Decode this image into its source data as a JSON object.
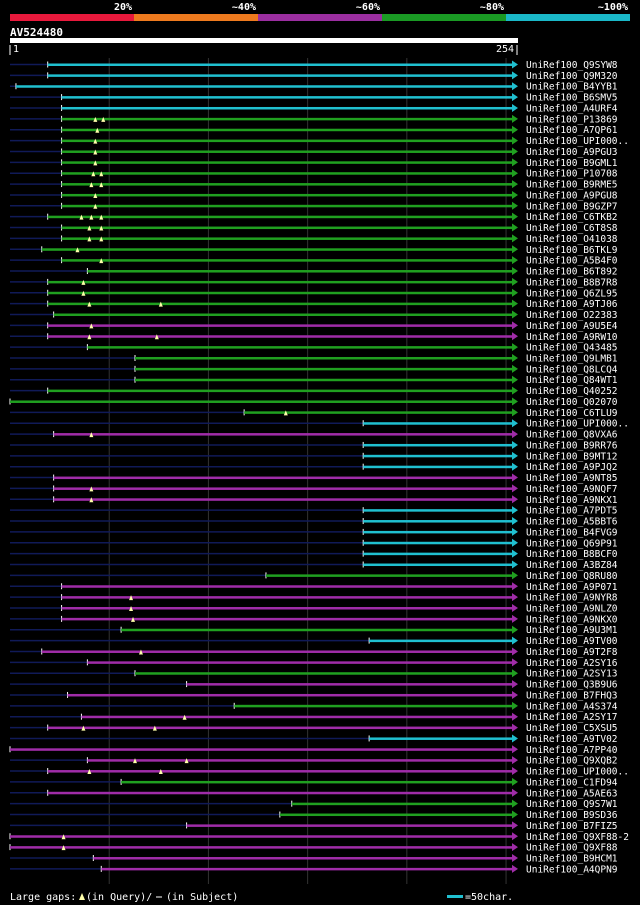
{
  "chart_data": {
    "type": "alignment-overview",
    "title": "AV524480",
    "scale": {
      "thresholds": [
        "20%",
        "~40%",
        "~60%",
        "~80%",
        "~100%"
      ],
      "colors": [
        "#e8193c",
        "#ee7a1e",
        "#9b2ea0",
        "#1a9a24",
        "#1ab8c8"
      ]
    },
    "query": {
      "start_label": "1",
      "end_label": "254",
      "length": 254
    },
    "colors": {
      "cyan": "#20c0d0",
      "green": "#20a020",
      "magenta": "#a02ca8",
      "navy": "#101a58",
      "gap": "#ffffaa"
    },
    "hits": [
      {
        "name": "UniRef100_Q9SYW8",
        "start": 20,
        "color": "cyan",
        "pre": "navy",
        "gaps": []
      },
      {
        "name": "UniRef100_Q9M320",
        "start": 20,
        "color": "cyan",
        "pre": "navy",
        "gaps": []
      },
      {
        "name": "UniRef100_B4YYB1",
        "start": 4,
        "color": "cyan",
        "pre": "navy",
        "gaps": []
      },
      {
        "name": "UniRef100_B6SMV5",
        "start": 27,
        "color": "cyan",
        "pre": "navy",
        "gaps": []
      },
      {
        "name": "UniRef100_A4URF4",
        "start": 27,
        "color": "cyan",
        "pre": "navy",
        "gaps": []
      },
      {
        "name": "UniRef100_P13869",
        "start": 27,
        "color": "green",
        "pre": "navy",
        "gaps": [
          44,
          48
        ]
      },
      {
        "name": "UniRef100_A7QP61",
        "start": 27,
        "color": "green",
        "pre": "navy",
        "gaps": [
          45
        ]
      },
      {
        "name": "UniRef100_UPI000..",
        "start": 27,
        "color": "green",
        "pre": "navy",
        "gaps": [
          44
        ]
      },
      {
        "name": "UniRef100_A9PGU3",
        "start": 27,
        "color": "green",
        "pre": "navy",
        "gaps": [
          44
        ]
      },
      {
        "name": "UniRef100_B9GML1",
        "start": 27,
        "color": "green",
        "pre": "navy",
        "gaps": [
          44
        ]
      },
      {
        "name": "UniRef100_P10708",
        "start": 27,
        "color": "green",
        "pre": "navy",
        "gaps": [
          43,
          47
        ]
      },
      {
        "name": "UniRef100_B9RME5",
        "start": 27,
        "color": "green",
        "pre": "navy",
        "gaps": [
          42,
          47
        ]
      },
      {
        "name": "UniRef100_A9PGU8",
        "start": 27,
        "color": "green",
        "pre": "navy",
        "gaps": [
          44
        ]
      },
      {
        "name": "UniRef100_B9GZP7",
        "start": 27,
        "color": "green",
        "pre": "navy",
        "gaps": [
          44
        ]
      },
      {
        "name": "UniRef100_C6TKB2",
        "start": 20,
        "color": "green",
        "pre": "navy",
        "gaps": [
          37,
          42,
          47
        ]
      },
      {
        "name": "UniRef100_C6T8S8",
        "start": 27,
        "color": "green",
        "pre": "navy",
        "gaps": [
          41,
          47
        ]
      },
      {
        "name": "UniRef100_O41038",
        "start": 27,
        "color": "green",
        "pre": "navy",
        "gaps": [
          41,
          47
        ]
      },
      {
        "name": "UniRef100_B6TKL9",
        "start": 17,
        "color": "green",
        "pre": "navy",
        "gaps": [
          35
        ]
      },
      {
        "name": "UniRef100_A5B4F0",
        "start": 27,
        "color": "green",
        "pre": "navy",
        "gaps": [
          47
        ]
      },
      {
        "name": "UniRef100_B6T892",
        "start": 40,
        "color": "green",
        "pre": "navy",
        "gaps": []
      },
      {
        "name": "UniRef100_B8B7R8",
        "start": 20,
        "color": "green",
        "pre": "navy",
        "gaps": [
          38
        ]
      },
      {
        "name": "UniRef100_Q6ZL95",
        "start": 20,
        "color": "green",
        "pre": "navy",
        "gaps": [
          38
        ]
      },
      {
        "name": "UniRef100_A9TJ06",
        "start": 20,
        "color": "green",
        "pre": "navy",
        "gaps": [
          41,
          77
        ]
      },
      {
        "name": "UniRef100_O22383",
        "start": 23,
        "color": "green",
        "pre": "navy",
        "gaps": []
      },
      {
        "name": "UniRef100_A9U5E4",
        "start": 20,
        "color": "magenta",
        "pre": "navy",
        "gaps": [
          42
        ]
      },
      {
        "name": "UniRef100_A9RW10",
        "start": 20,
        "color": "magenta",
        "pre": "navy",
        "gaps": [
          41,
          75
        ]
      },
      {
        "name": "UniRef100_Q43485",
        "start": 40,
        "color": "green",
        "pre": "navy",
        "gaps": []
      },
      {
        "name": "UniRef100_Q9LMB1",
        "start": 64,
        "color": "green",
        "pre": "navy",
        "gaps": []
      },
      {
        "name": "UniRef100_Q8LCQ4",
        "start": 64,
        "color": "green",
        "pre": "navy",
        "gaps": []
      },
      {
        "name": "UniRef100_Q84WT1",
        "start": 64,
        "color": "green",
        "pre": "navy",
        "gaps": []
      },
      {
        "name": "UniRef100_Q40252",
        "start": 20,
        "color": "green",
        "pre": "navy",
        "gaps": []
      },
      {
        "name": "UniRef100_Q02070",
        "start": 1,
        "color": "green",
        "pre": "navy",
        "gaps": []
      },
      {
        "name": "UniRef100_C6TLU9",
        "start": 119,
        "color": "green",
        "pre": "navy",
        "gaps": [
          140
        ]
      },
      {
        "name": "UniRef100_UPI000..",
        "start": 179,
        "color": "cyan",
        "pre": "navy",
        "gaps": []
      },
      {
        "name": "UniRef100_Q8VXA6",
        "start": 23,
        "color": "magenta",
        "pre": "navy",
        "gaps": [
          42
        ]
      },
      {
        "name": "UniRef100_B9RR76",
        "start": 179,
        "color": "cyan",
        "pre": "navy",
        "gaps": []
      },
      {
        "name": "UniRef100_B9MT12",
        "start": 179,
        "color": "cyan",
        "pre": "navy",
        "gaps": []
      },
      {
        "name": "UniRef100_A9PJQ2",
        "start": 179,
        "color": "cyan",
        "pre": "navy",
        "gaps": []
      },
      {
        "name": "UniRef100_A9NT85",
        "start": 23,
        "color": "magenta",
        "pre": "navy",
        "gaps": []
      },
      {
        "name": "UniRef100_A9NQF7",
        "start": 23,
        "color": "magenta",
        "pre": "navy",
        "gaps": [
          42
        ]
      },
      {
        "name": "UniRef100_A9NKX1",
        "start": 23,
        "color": "magenta",
        "pre": "navy",
        "gaps": [
          42
        ]
      },
      {
        "name": "UniRef100_A7PDT5",
        "start": 179,
        "color": "cyan",
        "pre": "navy",
        "gaps": []
      },
      {
        "name": "UniRef100_A5BBT6",
        "start": 179,
        "color": "cyan",
        "pre": "navy",
        "gaps": []
      },
      {
        "name": "UniRef100_B4FVG9",
        "start": 179,
        "color": "cyan",
        "pre": "navy",
        "gaps": []
      },
      {
        "name": "UniRef100_Q69P91",
        "start": 179,
        "color": "cyan",
        "pre": "navy",
        "gaps": []
      },
      {
        "name": "UniRef100_B8BCF0",
        "start": 179,
        "color": "cyan",
        "pre": "navy",
        "gaps": []
      },
      {
        "name": "UniRef100_A3BZ84",
        "start": 179,
        "color": "cyan",
        "pre": "navy",
        "gaps": []
      },
      {
        "name": "UniRef100_Q8RU80",
        "start": 130,
        "color": "green",
        "pre": "navy",
        "gaps": []
      },
      {
        "name": "UniRef100_A9P071",
        "start": 27,
        "color": "magenta",
        "pre": "navy",
        "gaps": []
      },
      {
        "name": "UniRef100_A9NYR8",
        "start": 27,
        "color": "magenta",
        "pre": "navy",
        "gaps": [
          62
        ]
      },
      {
        "name": "UniRef100_A9NLZ0",
        "start": 27,
        "color": "magenta",
        "pre": "navy",
        "gaps": [
          62
        ]
      },
      {
        "name": "UniRef100_A9NKX0",
        "start": 27,
        "color": "magenta",
        "pre": "navy",
        "gaps": [
          63
        ]
      },
      {
        "name": "UniRef100_A9U3M1",
        "start": 57,
        "color": "green",
        "pre": "navy",
        "gaps": []
      },
      {
        "name": "UniRef100_A9TV00",
        "start": 182,
        "color": "cyan",
        "pre": "navy",
        "gaps": []
      },
      {
        "name": "UniRef100_A9T2F8",
        "start": 17,
        "color": "magenta",
        "pre": "navy",
        "gaps": [
          67
        ]
      },
      {
        "name": "UniRef100_A2SY16",
        "start": 40,
        "color": "magenta",
        "pre": "navy",
        "gaps": []
      },
      {
        "name": "UniRef100_A2SY13",
        "start": 64,
        "color": "green",
        "pre": "navy",
        "gaps": []
      },
      {
        "name": "UniRef100_Q3B9U6",
        "start": 90,
        "color": "magenta",
        "pre": "navy",
        "gaps": []
      },
      {
        "name": "UniRef100_B7FHQ3",
        "start": 30,
        "color": "magenta",
        "pre": "navy",
        "gaps": []
      },
      {
        "name": "UniRef100_A4S374",
        "start": 114,
        "color": "green",
        "pre": "navy",
        "gaps": []
      },
      {
        "name": "UniRef100_A2SY17",
        "start": 37,
        "color": "magenta",
        "pre": "navy",
        "gaps": [
          89
        ]
      },
      {
        "name": "UniRef100_C5XSU5",
        "start": 20,
        "color": "magenta",
        "pre": "navy",
        "gaps": [
          38,
          74
        ]
      },
      {
        "name": "UniRef100_A9TV02",
        "start": 182,
        "color": "cyan",
        "pre": "navy",
        "gaps": []
      },
      {
        "name": "UniRef100_A7PP40",
        "start": 1,
        "color": "magenta",
        "pre": "navy",
        "gaps": []
      },
      {
        "name": "UniRef100_Q9XQB2",
        "start": 40,
        "color": "magenta",
        "pre": "navy",
        "gaps": [
          64,
          90
        ]
      },
      {
        "name": "UniRef100_UPI000..",
        "start": 20,
        "color": "magenta",
        "pre": "navy",
        "gaps": [
          41,
          77
        ]
      },
      {
        "name": "UniRef100_C1FD94",
        "start": 57,
        "color": "green",
        "pre": "navy",
        "gaps": []
      },
      {
        "name": "UniRef100_A5AE63",
        "start": 20,
        "color": "magenta",
        "pre": "navy",
        "gaps": []
      },
      {
        "name": "UniRef100_Q9S7W1",
        "start": 143,
        "color": "green",
        "pre": "navy",
        "gaps": []
      },
      {
        "name": "UniRef100_B9SD36",
        "start": 137,
        "color": "green",
        "pre": "navy",
        "gaps": []
      },
      {
        "name": "UniRef100_B7FIZ5",
        "start": 90,
        "color": "magenta",
        "pre": "navy",
        "gaps": []
      },
      {
        "name": "UniRef100_Q9XF88-2",
        "start": 1,
        "color": "magenta",
        "pre": "navy",
        "gaps": [
          28
        ]
      },
      {
        "name": "UniRef100_Q9XF88",
        "start": 1,
        "color": "magenta",
        "pre": "navy",
        "gaps": [
          28
        ]
      },
      {
        "name": "UniRef100_B9HCM1",
        "start": 43,
        "color": "magenta",
        "pre": "navy",
        "gaps": []
      },
      {
        "name": "UniRef100_A4QPN9",
        "start": 47,
        "color": "magenta",
        "pre": "navy",
        "gaps": []
      }
    ],
    "legend": {
      "large_gaps_label": "Large gaps:",
      "in_query_label": "(in Query)/",
      "in_subject_label": "(in Subject)",
      "scale_bar_label": "=50char."
    }
  }
}
